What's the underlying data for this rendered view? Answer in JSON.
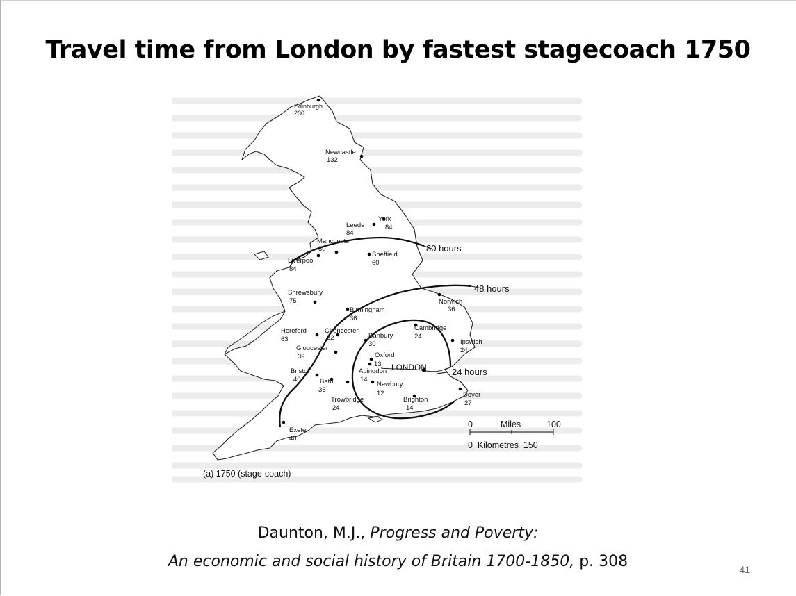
{
  "slide": {
    "title": "Travel time from London by fastest stagecoach 1750",
    "page_number": "41"
  },
  "map": {
    "caption": "(a) 1750 (stage-coach)",
    "towns": [
      {
        "name": "Edinburgh",
        "hours": "230"
      },
      {
        "name": "Newcastle",
        "hours": "132"
      },
      {
        "name": "York",
        "hours": "84"
      },
      {
        "name": "Leeds",
        "hours": "84"
      },
      {
        "name": "Manchester",
        "hours": "80"
      },
      {
        "name": "Liverpool",
        "hours": "84"
      },
      {
        "name": "Sheffield",
        "hours": "60"
      },
      {
        "name": "Shrewsbury",
        "hours": "75"
      },
      {
        "name": "Norwich",
        "hours": "36"
      },
      {
        "name": "Birmingham",
        "hours": "36"
      },
      {
        "name": "Hereford",
        "hours": "63"
      },
      {
        "name": "Cirencester",
        "hours": "22"
      },
      {
        "name": "Cambridge",
        "hours": "24"
      },
      {
        "name": "Banbury",
        "hours": "30"
      },
      {
        "name": "Gloucester",
        "hours": "39"
      },
      {
        "name": "Ipswich",
        "hours": "24"
      },
      {
        "name": "Oxford",
        "hours": "13"
      },
      {
        "name": "Abingdon",
        "hours": "14"
      },
      {
        "name": "Bristol",
        "hours": "40"
      },
      {
        "name": "Bath",
        "hours": "36"
      },
      {
        "name": "Newbury",
        "hours": "12"
      },
      {
        "name": "Trowbridge",
        "hours": "24"
      },
      {
        "name": "Brighton",
        "hours": "14"
      },
      {
        "name": "Dover",
        "hours": "27"
      },
      {
        "name": "Exeter",
        "hours": "40"
      }
    ],
    "london": "LONDON",
    "contours": [
      {
        "label": "80 hours"
      },
      {
        "label": "48 hours"
      },
      {
        "label": "24 hours"
      }
    ],
    "scale": {
      "miles_zero": "0",
      "miles_label": "Miles",
      "miles_max": "100",
      "km_label": "0  Kilometres  150"
    }
  },
  "citation": {
    "author": "Daunton, M.J., ",
    "title_italic": "Progress and Poverty:",
    "subtitle_italic": "An economic and social history of Britain 1700-1850,",
    "page": " p. 308"
  }
}
